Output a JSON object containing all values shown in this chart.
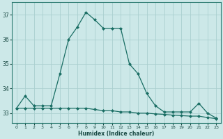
{
  "xlabel": "Humidex (Indice chaleur)",
  "bg_color": "#cce8e8",
  "line_color": "#1a6e64",
  "grid_color": "#aacfcf",
  "x": [
    0,
    1,
    2,
    3,
    4,
    5,
    6,
    7,
    8,
    9,
    10,
    11,
    12,
    13,
    14,
    15,
    16,
    17,
    18,
    19,
    20,
    21,
    22,
    23
  ],
  "line1": [
    33.2,
    33.7,
    33.3,
    33.3,
    33.3,
    34.6,
    36.0,
    36.5,
    37.1,
    36.8,
    36.45,
    36.45,
    36.45,
    35.0,
    34.6,
    33.8,
    33.3,
    33.05,
    33.05,
    33.05,
    33.05,
    33.4,
    33.0,
    32.8
  ],
  "line2": [
    33.2,
    33.2,
    33.2,
    33.2,
    33.2,
    33.2,
    33.2,
    33.2,
    33.2,
    33.15,
    33.1,
    33.1,
    33.05,
    33.05,
    33.0,
    33.0,
    32.97,
    32.95,
    32.92,
    32.9,
    32.88,
    32.88,
    32.82,
    32.78
  ],
  "ylim": [
    32.6,
    37.5
  ],
  "yticks": [
    33,
    34,
    35,
    36,
    37
  ],
  "xticks": [
    0,
    1,
    2,
    3,
    4,
    5,
    6,
    7,
    8,
    9,
    10,
    11,
    12,
    13,
    14,
    15,
    16,
    17,
    18,
    19,
    20,
    21,
    22,
    23
  ],
  "marker": "D",
  "markersize": 2.0,
  "linewidth": 0.9
}
